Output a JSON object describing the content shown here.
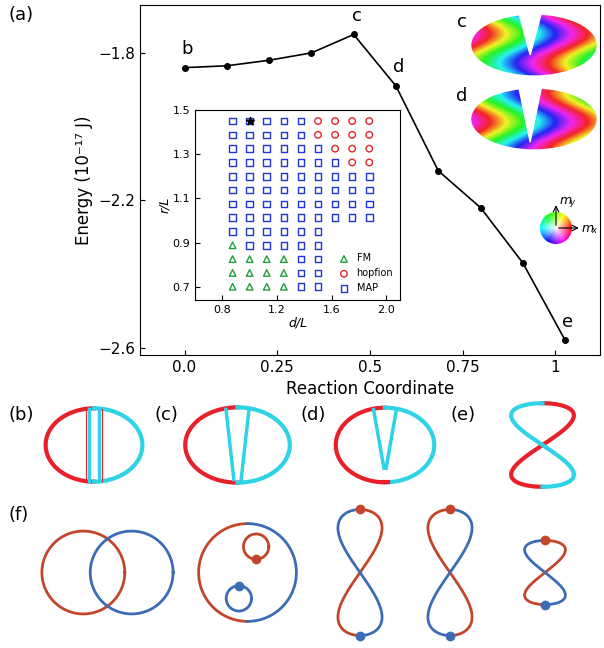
{
  "chart_data": [
    {
      "type": "line",
      "x": [
        0,
        0.114,
        0.228,
        0.342,
        0.456,
        0.57,
        0.684,
        0.798,
        0.912,
        1.026
      ],
      "values": [
        -1.84,
        -1.835,
        -1.82,
        -1.8,
        -1.75,
        -1.89,
        -2.12,
        -2.22,
        -2.37,
        -2.58
      ],
      "point_labels": [
        "b",
        null,
        null,
        null,
        "c",
        "d",
        null,
        null,
        null,
        "e"
      ],
      "color": "#000000",
      "marker": "circle",
      "xlabel": "Reaction Coordinate",
      "ylabel": "Energy (10⁻¹⁷ J)",
      "xlim": [
        -0.12,
        1.12
      ],
      "ylim": [
        -2.62,
        -1.67
      ],
      "xticks": [
        {
          "value": 0,
          "label": "0.0"
        },
        0.25,
        0.5,
        0.75,
        1
      ],
      "yticks": [
        {
          "value": -1.8,
          "label": "−1.8"
        },
        {
          "value": -2.2,
          "label": "−2.2"
        },
        {
          "value": -2.6,
          "label": "−2.6"
        }
      ],
      "image_labels": [
        "c",
        "d"
      ],
      "color_wheel_labels": {
        "vertical": [
          "m",
          "y"
        ],
        "horizontal": [
          "m",
          "x"
        ]
      }
    },
    {
      "type": "scatter",
      "x": [
        0.875,
        1.0,
        1.125,
        1.25,
        1.375,
        1.5,
        1.625,
        1.75,
        1.875
      ],
      "y": [
        0.7,
        0.7625,
        0.825,
        0.8875,
        0.95,
        1.0125,
        1.075,
        1.1375,
        1.2,
        1.2625,
        1.325,
        1.3875,
        1.45
      ],
      "phases": [
        [
          "FM",
          "FM",
          "FM",
          "FM",
          "MAP",
          "MAP",
          null,
          null,
          null
        ],
        [
          "FM",
          "FM",
          "FM",
          "FM",
          "MAP",
          "MAP",
          null,
          null,
          null
        ],
        [
          "FM",
          "FM",
          "FM",
          "FM",
          "MAP",
          "MAP",
          null,
          null,
          null
        ],
        [
          "FM",
          "MAP",
          "MAP",
          "MAP",
          "MAP",
          "MAP",
          null,
          null,
          null
        ],
        [
          "MAP",
          "MAP",
          "MAP",
          "MAP",
          "MAP",
          "MAP",
          null,
          null,
          null
        ],
        [
          "MAP",
          "MAP",
          "MAP",
          "MAP",
          "MAP",
          "MAP",
          "MAP",
          "MAP",
          "MAP"
        ],
        [
          "MAP",
          "MAP",
          "MAP",
          "MAP",
          "MAP",
          "MAP",
          "MAP",
          "MAP",
          "MAP"
        ],
        [
          "MAP",
          "MAP",
          "MAP",
          "MAP",
          "MAP",
          "MAP",
          "MAP",
          "MAP",
          "MAP"
        ],
        [
          "MAP",
          "MAP",
          "MAP",
          "MAP",
          "MAP",
          "MAP",
          "MAP",
          "MAP",
          "MAP"
        ],
        [
          "MAP",
          "MAP",
          "MAP",
          "MAP",
          "MAP",
          "MAP",
          "MAP",
          "hopfion",
          "hopfion"
        ],
        [
          "MAP",
          "MAP",
          "MAP",
          "MAP",
          "MAP",
          "MAP",
          "hopfion",
          "hopfion",
          "hopfion"
        ],
        [
          "MAP",
          "MAP",
          "MAP",
          "MAP",
          "MAP",
          "hopfion",
          "hopfion",
          "hopfion",
          "hopfion"
        ],
        [
          "MAP",
          "MAP",
          "MAP",
          "MAP",
          "MAP",
          "hopfion",
          "hopfion",
          "hopfion",
          "hopfion"
        ]
      ],
      "series": [
        {
          "name": "FM",
          "color": "#1f9e3a",
          "marker": "triangle"
        },
        {
          "name": "hopfion",
          "color": "#e0262b",
          "marker": "circle"
        },
        {
          "name": "MAP",
          "color": "#2236d6",
          "marker": "square"
        }
      ],
      "highlight": {
        "x": 1.0,
        "y": 1.45,
        "marker": "star",
        "color": "#000000"
      },
      "xlabel": "d/L",
      "ylabel": "r/L",
      "xlim": [
        0.6,
        2.1
      ],
      "ylim": [
        0.64,
        1.5
      ],
      "xticks": [
        0.8,
        1.2,
        1.6,
        {
          "value": 2.0,
          "label": "2.0"
        }
      ],
      "yticks": [
        0.7,
        0.9,
        1.1,
        1.3,
        1.5
      ],
      "legend": "lower right"
    }
  ],
  "panel_labels": [
    "(a)",
    "(b)",
    "(c)",
    "(d)",
    "(e)",
    "(f)"
  ]
}
